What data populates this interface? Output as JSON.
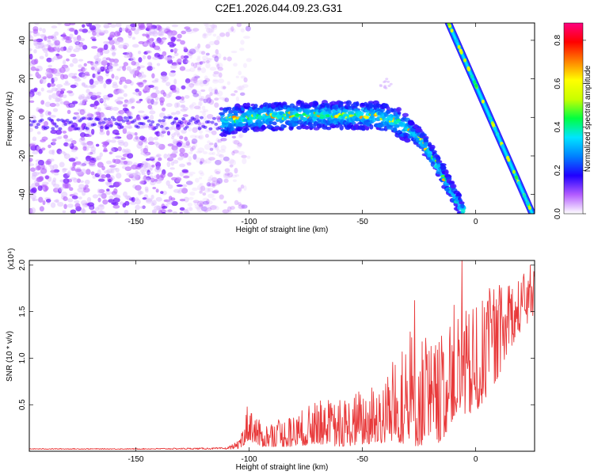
{
  "title": "C2E1.2026.044.09.23.G31",
  "chart_data": [
    {
      "type": "heatmap",
      "title": "C2E1.2026.044.09.23.G31",
      "xlabel": "Height of straight line (km)",
      "ylabel": "Frequency (Hz)",
      "xlim": [
        -197,
        26
      ],
      "ylim": [
        -50,
        49
      ],
      "xticks": [
        -150,
        -100,
        -50,
        0
      ],
      "yticks": [
        -40,
        -20,
        0,
        20,
        40
      ],
      "features": {
        "noise_region_x": [
          -197,
          -112
        ],
        "ridge": [
          [
            -112,
            -2
          ],
          [
            -100,
            0
          ],
          [
            -80,
            1
          ],
          [
            -60,
            1
          ],
          [
            -45,
            1
          ],
          [
            -35,
            -2
          ],
          [
            -25,
            -10
          ],
          [
            -18,
            -22
          ],
          [
            -12,
            -35
          ],
          [
            -5,
            -50
          ]
        ],
        "second_line": [
          [
            -12,
            49
          ],
          [
            25,
            -50
          ]
        ]
      },
      "colorbar": {
        "label": "Normalized spectral amplitude",
        "range": [
          0.0,
          0.88
        ],
        "ticks": [
          0.0,
          0.2,
          0.4,
          0.6,
          0.8
        ],
        "tick_labels": [
          "0.0",
          "0.2",
          "0.4",
          "0.6",
          "0.8"
        ],
        "colormap": [
          "#ffffff",
          "#b35cff",
          "#2000ff",
          "#0080ff",
          "#00e5ff",
          "#00ff40",
          "#c8ff00",
          "#ffff00",
          "#ff8000",
          "#ff0000",
          "#ff0080"
        ]
      }
    },
    {
      "type": "line",
      "xlabel": "Height of straight line (km)",
      "ylabel": "SNR (10 * v/v)",
      "y_multiplier": "(x10⁴)",
      "xlim": [
        -197,
        26
      ],
      "ylim": [
        0,
        2.05
      ],
      "xticks": [
        -150,
        -100,
        -50,
        0
      ],
      "yticks": [
        0.5,
        1.0,
        1.5,
        2.0
      ],
      "ytick_labels": [
        "0.5",
        "1.0",
        "1.5",
        "2.0"
      ],
      "series": [
        {
          "name": "SNR",
          "color": "#e8393a",
          "envelope": [
            [
              -197,
              0.02,
              0.03
            ],
            [
              -150,
              0.02,
              0.03
            ],
            [
              -110,
              0.02,
              0.04
            ],
            [
              -104,
              0.03,
              0.12
            ],
            [
              -100,
              0.12,
              0.62
            ],
            [
              -95,
              0.05,
              0.3
            ],
            [
              -80,
              0.05,
              0.4
            ],
            [
              -70,
              0.08,
              0.55
            ],
            [
              -60,
              0.05,
              0.55
            ],
            [
              -45,
              0.08,
              0.75
            ],
            [
              -35,
              0.1,
              1.0
            ],
            [
              -27,
              0.05,
              1.4
            ],
            [
              -20,
              0.08,
              1.2
            ],
            [
              -15,
              0.1,
              1.25
            ],
            [
              -10,
              0.35,
              1.6
            ],
            [
              -5,
              0.4,
              1.5
            ],
            [
              0,
              0.4,
              1.55
            ],
            [
              5,
              0.6,
              1.7
            ],
            [
              10,
              0.8,
              1.8
            ],
            [
              15,
              1.1,
              1.85
            ],
            [
              20,
              1.3,
              1.9
            ],
            [
              26,
              1.45,
              1.95
            ]
          ],
          "peaks": [
            [
              -6,
              2.05
            ],
            [
              6,
              1.75
            ],
            [
              -27,
              1.62
            ],
            [
              24,
              2.0
            ]
          ]
        }
      ]
    }
  ]
}
